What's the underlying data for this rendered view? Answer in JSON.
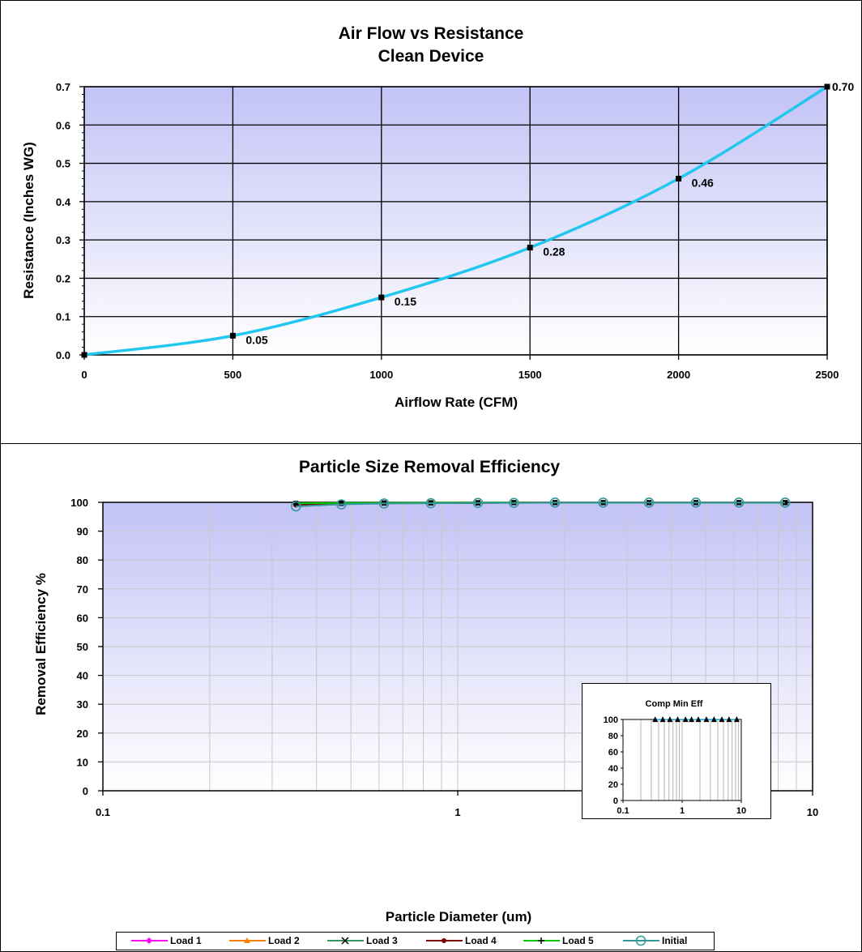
{
  "chart_data": [
    {
      "type": "line",
      "title": "Air Flow vs Resistance",
      "subtitle": "Clean Device",
      "xlabel": "Airflow Rate (CFM)",
      "ylabel": "Resistance (Inches WG)",
      "xlim": [
        0,
        2500
      ],
      "ylim": [
        0,
        0.7
      ],
      "xticks": [
        "0",
        "500",
        "1000",
        "1500",
        "2000",
        "2500"
      ],
      "yticks": [
        "0.0",
        "0.1",
        "0.2",
        "0.3",
        "0.4",
        "0.5",
        "0.6",
        "0.7"
      ],
      "grid": true,
      "series": [
        {
          "color": "#22c7ef",
          "x": [
            0,
            500,
            1000,
            1500,
            2000,
            2500
          ],
          "y": [
            0.0,
            0.05,
            0.15,
            0.28,
            0.46,
            0.7
          ],
          "labels": [
            "",
            "0.05",
            "0.15",
            "0.28",
            "0.46",
            "0.70"
          ]
        }
      ]
    },
    {
      "type": "line",
      "title": "Particle Size Removal Efficiency",
      "xlabel": "Particle Diameter (um)",
      "ylabel": "Removal Efficiency %",
      "xscale": "log",
      "xlim": [
        0.1,
        10
      ],
      "ylim": [
        0,
        100
      ],
      "xticks": [
        "0.1",
        "1",
        "10"
      ],
      "yticks": [
        "0",
        "10",
        "20",
        "30",
        "40",
        "50",
        "60",
        "70",
        "80",
        "90",
        "100"
      ],
      "grid": true,
      "legend_position": "bottom",
      "x": [
        0.35,
        0.47,
        0.62,
        0.84,
        1.14,
        1.44,
        1.88,
        2.57,
        3.46,
        4.69,
        6.2,
        8.37
      ],
      "series": [
        {
          "name": "Load 1",
          "color": "#ff00ff",
          "marker": "diamond",
          "values": [
            99.5,
            99.6,
            99.7,
            99.8,
            99.8,
            99.9,
            99.9,
            99.9,
            99.9,
            99.9,
            99.9,
            99.9
          ]
        },
        {
          "name": "Load 2",
          "color": "#ff8000",
          "marker": "triangle",
          "values": [
            99.5,
            99.6,
            99.7,
            99.8,
            99.8,
            99.9,
            99.9,
            99.9,
            99.9,
            99.9,
            99.9,
            99.9
          ]
        },
        {
          "name": "Load 3",
          "color": "#339966",
          "marker": "x",
          "values": [
            99.6,
            99.7,
            99.8,
            99.8,
            99.9,
            99.9,
            99.9,
            99.9,
            99.9,
            99.9,
            99.9,
            99.9
          ]
        },
        {
          "name": "Load 4",
          "color": "#800000",
          "marker": "circle",
          "values": [
            99.0,
            99.6,
            99.7,
            99.8,
            99.8,
            99.9,
            99.9,
            99.9,
            99.9,
            99.9,
            99.9,
            99.9
          ]
        },
        {
          "name": "Load 5",
          "color": "#00cc00",
          "marker": "plus",
          "values": [
            99.7,
            99.8,
            99.8,
            99.9,
            99.9,
            99.9,
            99.9,
            99.9,
            99.9,
            99.9,
            99.9,
            99.9
          ]
        },
        {
          "name": "Initial",
          "color": "#339999",
          "marker": "open-circle",
          "values": [
            98.6,
            99.3,
            99.6,
            99.7,
            99.8,
            99.8,
            99.9,
            99.9,
            99.9,
            99.9,
            99.9,
            99.9
          ]
        }
      ],
      "inset": {
        "title": "Comp Min Eff",
        "xscale": "log",
        "xlim": [
          0.1,
          10
        ],
        "ylim": [
          0,
          100
        ],
        "xticks": [
          "0.1",
          "1",
          "10"
        ],
        "yticks": [
          "0",
          "20",
          "40",
          "60",
          "80",
          "100"
        ],
        "color": "#00b0f0",
        "x": [
          0.35,
          0.47,
          0.62,
          0.84,
          1.14,
          1.44,
          1.88,
          2.57,
          3.46,
          4.69,
          6.2,
          8.37
        ],
        "values": [
          99.9,
          99.9,
          99.9,
          99.9,
          99.9,
          99.9,
          99.9,
          99.9,
          99.9,
          99.9,
          99.9,
          99.9
        ]
      }
    }
  ]
}
